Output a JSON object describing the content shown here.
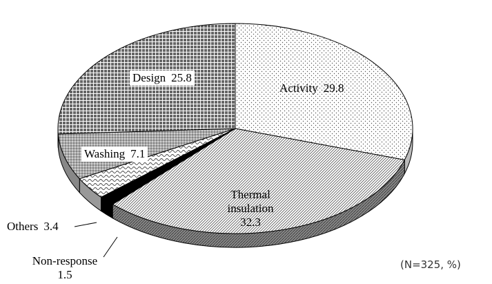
{
  "chart_data": {
    "type": "pie",
    "categories": [
      "Activity",
      "Thermal insulation",
      "Non-response",
      "Others",
      "Washing",
      "Design"
    ],
    "values": [
      29.8,
      32.3,
      1.5,
      3.4,
      7.1,
      25.8
    ],
    "note": "(N=325, %)"
  }
}
